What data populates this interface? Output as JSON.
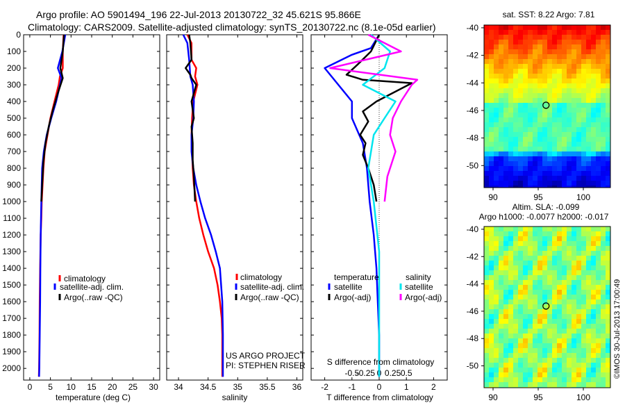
{
  "header": {
    "title_line1": "Argo profile: AO 5901494_196 22-Jul-2013 20130722_32 45.621S 95.866E",
    "title_line2": "Climatology: CARS2009. Satellite-adjusted climatology: synTS_20130722.nc (8.1e-05d earlier)"
  },
  "colors": {
    "climatology": "#ff0000",
    "satellite": "#0000ff",
    "argo": "#000000",
    "sal_satellite": "#00e5ee",
    "sal_argo": "#ff00ff"
  },
  "footer": {
    "project": "US ARGO PROJECT",
    "pi": "PI: STEPHEN RISER",
    "watermark": "©IMOS 30-Jul-2013 17:00:49"
  },
  "chart_data": [
    {
      "type": "line",
      "id": "temperature",
      "xlabel": "temperature (deg C)",
      "ylabel": "",
      "xlim": [
        -1.5,
        31.5
      ],
      "ylim": [
        2070,
        0
      ],
      "xticks": [
        0,
        5,
        10,
        15,
        20,
        25,
        30
      ],
      "yticks": [
        0,
        100,
        200,
        300,
        400,
        500,
        600,
        700,
        800,
        900,
        1000,
        1100,
        1200,
        1300,
        1400,
        1500,
        1600,
        1700,
        1800,
        1900,
        2000
      ],
      "legend": [
        "climatology",
        "satellite-adj. clim.",
        "Argo(..raw -QC)"
      ],
      "series": [
        {
          "name": "climatology",
          "color": "#ff0000",
          "x": [
            8.2,
            8.0,
            8.0,
            7.3,
            7.0,
            6.0,
            5.0,
            4.3,
            3.6,
            3.3,
            3.1,
            2.9,
            2.8,
            2.65,
            2.5,
            2.4,
            2.35,
            2.3,
            2.25,
            2.2
          ],
          "y": [
            0,
            100,
            200,
            250,
            300,
            400,
            500,
            600,
            700,
            800,
            900,
            1000,
            1100,
            1200,
            1400,
            1600,
            1800,
            1900,
            2000,
            2050
          ]
        },
        {
          "name": "satellite-adj. clim.",
          "color": "#0000ff",
          "x": [
            8.6,
            7.9,
            6.8,
            7.7,
            6.4,
            5.2,
            4.1,
            3.4,
            3.0,
            2.8,
            2.65,
            2.55,
            2.5,
            2.4,
            2.3,
            2.25
          ],
          "y": [
            0,
            100,
            200,
            260,
            400,
            500,
            600,
            700,
            800,
            1000,
            1200,
            1400,
            1600,
            1800,
            2000,
            2050
          ]
        },
        {
          "name": "Argo(..raw -QC)",
          "color": "#000000",
          "x": [
            8.3,
            8.0,
            7.4,
            8.0,
            6.8,
            5.5,
            4.6,
            3.8,
            3.3,
            3.0,
            2.8
          ],
          "y": [
            0,
            100,
            200,
            260,
            350,
            460,
            550,
            650,
            760,
            900,
            1000
          ]
        }
      ]
    },
    {
      "type": "line",
      "id": "salinity",
      "xlabel": "salinity",
      "ylabel": "",
      "xlim": [
        33.8,
        36.1
      ],
      "ylim": [
        2070,
        0
      ],
      "xticks": [
        34,
        34.5,
        35,
        35.5,
        36
      ],
      "legend": [
        "climatology",
        "satellite-adj. clim.",
        "Argo(..raw -QC)"
      ],
      "series": [
        {
          "name": "climatology",
          "color": "#ff0000",
          "x": [
            34.15,
            34.22,
            34.22,
            34.3,
            34.28,
            34.32,
            34.25,
            34.23,
            34.22,
            34.23,
            34.24,
            34.26,
            34.3,
            34.35,
            34.42,
            34.5,
            34.6,
            34.66,
            34.7,
            34.73,
            34.74,
            34.74,
            34.74
          ],
          "y": [
            0,
            50,
            150,
            200,
            250,
            300,
            400,
            500,
            600,
            700,
            800,
            900,
            1000,
            1100,
            1200,
            1300,
            1400,
            1500,
            1600,
            1700,
            1800,
            1900,
            2050
          ]
        },
        {
          "name": "satellite-adj. clim.",
          "color": "#0000ff",
          "x": [
            34.08,
            34.15,
            34.18,
            34.2,
            34.24,
            34.26,
            34.25,
            34.22,
            34.22,
            34.25,
            34.3,
            34.37,
            34.45,
            34.55,
            34.63,
            34.7,
            34.74,
            34.75,
            34.75
          ],
          "y": [
            0,
            50,
            150,
            250,
            300,
            400,
            500,
            600,
            700,
            800,
            900,
            1000,
            1100,
            1200,
            1300,
            1400,
            1600,
            1800,
            2050
          ]
        },
        {
          "name": "Argo(..raw -QC)",
          "color": "#000000",
          "x": [
            34.18,
            34.2,
            34.22,
            34.12,
            34.2,
            34.22,
            34.3,
            34.22,
            34.26,
            34.22,
            34.24,
            34.24,
            34.26,
            34.28
          ],
          "y": [
            0,
            50,
            150,
            200,
            240,
            260,
            300,
            400,
            500,
            550,
            650,
            750,
            850,
            1000
          ]
        }
      ]
    },
    {
      "type": "line",
      "id": "difference",
      "xlabel": "T difference from climatology",
      "xlabel_top": "S difference from climatology",
      "ylabel": "",
      "xlim": [
        -2.5,
        2.5
      ],
      "ylim": [
        2070,
        0
      ],
      "xticks_bottom": [
        -2,
        -1,
        0,
        1,
        2
      ],
      "xticks_top": [
        -0.5,
        -0.25,
        0,
        0.25,
        0.5
      ],
      "legend_temperature_title": "temperature",
      "legend_salinity_title": "salinity",
      "legend": [
        "satellite",
        "Argo(-adj)",
        "satellite",
        "Argo(-adj)"
      ],
      "series": [
        {
          "name": "satellite",
          "group": "temperature",
          "color": "#0000ff",
          "x": [
            0.0,
            -0.3,
            -1.0,
            -2.0,
            -1.5,
            -1.0,
            -1.0,
            -0.6,
            -0.45,
            -0.35,
            -0.2,
            -0.1,
            -0.05,
            0.0,
            0.0
          ],
          "y": [
            0,
            80,
            120,
            200,
            300,
            400,
            500,
            650,
            800,
            1000,
            1200,
            1400,
            1600,
            1800,
            2050
          ]
        },
        {
          "name": "Argo(-adj)",
          "group": "temperature",
          "color": "#000000",
          "x": [
            0.0,
            -0.3,
            -0.8,
            -1.2,
            -0.6,
            1.2,
            -0.1,
            -0.6,
            -0.4,
            -0.7,
            -0.5,
            -0.6,
            -0.4,
            -0.2,
            -0.1
          ],
          "y": [
            0,
            100,
            180,
            240,
            270,
            290,
            400,
            460,
            520,
            600,
            650,
            720,
            800,
            900,
            1000
          ]
        },
        {
          "name": "satellite",
          "group": "salinity",
          "color": "#00e5ee",
          "x": [
            -0.15,
            0.2,
            0.1,
            -0.3,
            0.3,
            0.1,
            -0.1,
            -0.2,
            -0.1,
            0.0,
            0.0,
            0.0
          ],
          "y": [
            0,
            100,
            200,
            300,
            400,
            500,
            600,
            800,
            1000,
            1300,
            1600,
            2050
          ]
        },
        {
          "name": "Argo(-adj)",
          "group": "salinity",
          "color": "#ff00ff",
          "x": [
            -0.2,
            0.4,
            -0.9,
            0.7,
            0.6,
            0.4,
            0.25,
            0.2,
            0.3,
            0.15,
            0.1
          ],
          "y": [
            0,
            100,
            200,
            270,
            300,
            400,
            500,
            600,
            700,
            850,
            1000
          ]
        }
      ]
    },
    {
      "type": "heatmap",
      "id": "sst_map",
      "title": "sat. SST: 8.22  Argo: 7.81",
      "xlim": [
        89,
        103
      ],
      "ylim": [
        -51.6,
        -39.8
      ],
      "xticks": [
        90,
        95,
        100
      ],
      "yticks": [
        -40,
        -42,
        -44,
        -46,
        -48,
        -50
      ],
      "marker": {
        "lon": 95.866,
        "lat": -45.621
      }
    },
    {
      "type": "heatmap",
      "id": "sla_map",
      "title": "Altim. SLA: -0.099",
      "subtitle": "Argo h1000: -0.0077 h2000: -0.017",
      "xlim": [
        89,
        103
      ],
      "ylim": [
        -51.6,
        -39.8
      ],
      "xticks": [
        90,
        95,
        100
      ],
      "yticks": [
        -40,
        -42,
        -44,
        -46,
        -48,
        -50
      ],
      "marker": {
        "lon": 95.866,
        "lat": -45.621
      }
    }
  ]
}
